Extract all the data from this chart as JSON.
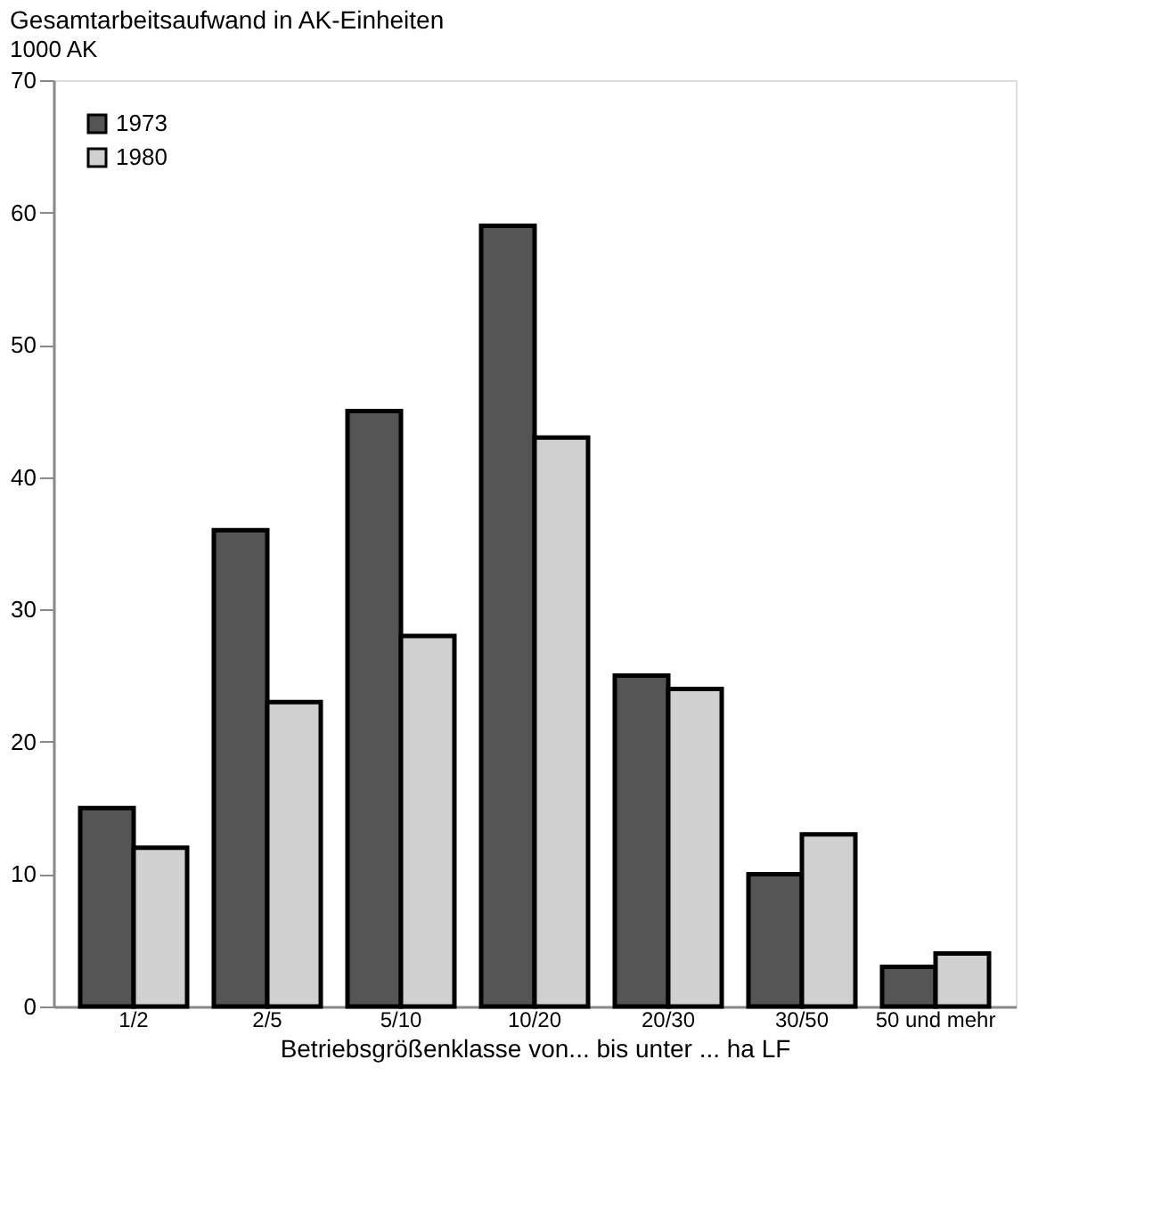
{
  "chart_data": {
    "type": "bar",
    "title": "Gesamtarbeitsaufwand in AK-Einheiten",
    "ylabel": "1000 AK",
    "xlabel": "Betriebsgrößenklasse von... bis unter ... ha LF",
    "categories": [
      "1/2",
      "2/5",
      "5/10",
      "10/20",
      "20/30",
      "30/50",
      "50 und mehr"
    ],
    "series": [
      {
        "name": "1973",
        "color": "#555555",
        "values": [
          15,
          36,
          45,
          59,
          25,
          10,
          3
        ]
      },
      {
        "name": "1980",
        "color": "#d0d0d0",
        "values": [
          12,
          23,
          28,
          43,
          24,
          13,
          4
        ]
      }
    ],
    "ylim": [
      0,
      70
    ],
    "yticks": [
      0,
      10,
      20,
      30,
      40,
      50,
      60,
      70
    ],
    "grid": false,
    "legend": "top left"
  }
}
